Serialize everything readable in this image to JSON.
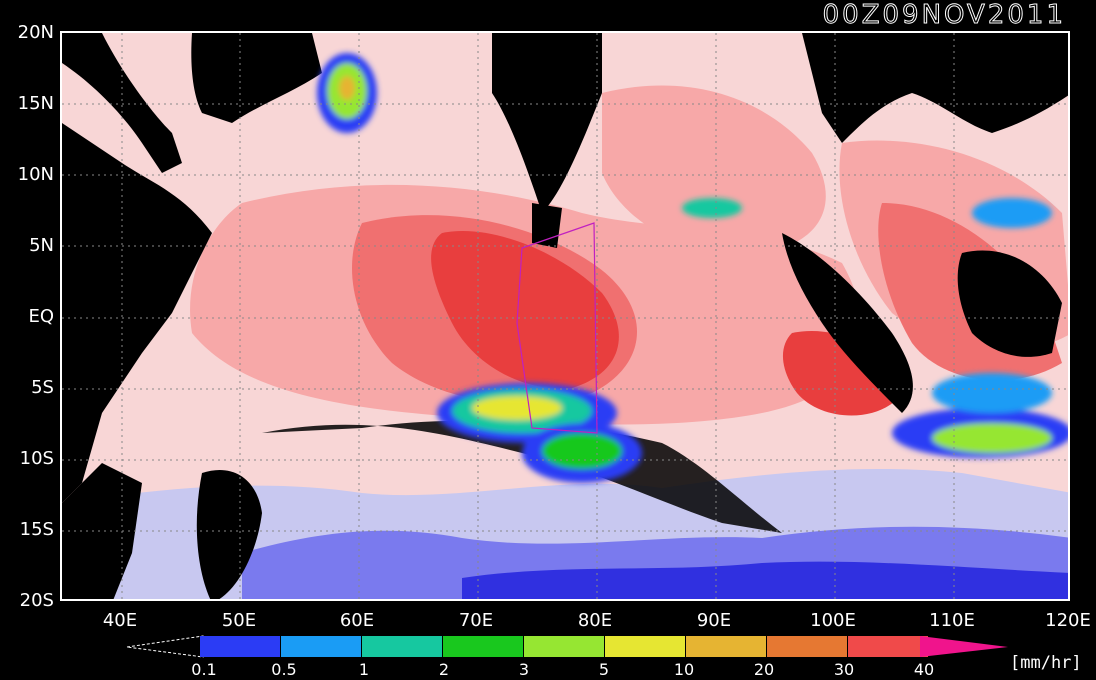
{
  "title": "00Z09NOV2011",
  "lat_labels": [
    "20N",
    "15N",
    "10N",
    "5N",
    "EQ",
    "5S",
    "10S",
    "15S",
    "20S"
  ],
  "lon_labels": [
    "40E",
    "50E",
    "60E",
    "70E",
    "80E",
    "90E",
    "100E",
    "110E",
    "120E"
  ],
  "colorbar": {
    "unit": "[mm/hr]",
    "labels": [
      "0.1",
      "0.5",
      "1",
      "2",
      "3",
      "5",
      "10",
      "20",
      "30",
      "40"
    ],
    "colors": [
      "#2b3cf5",
      "#1a9cf5",
      "#16c8a0",
      "#19c81e",
      "#96e632",
      "#e6e632",
      "#e6b432",
      "#e67832",
      "#f04a4a",
      "#f0148c"
    ]
  },
  "legend_colors": {
    "very_light": "#f8d6d6",
    "light": "#f7a8a8",
    "medium": "#f07070",
    "strong": "#e83e3e",
    "low_lightblue": "#c8c8f0",
    "low_blue": "#5a5ae6",
    "land": "#000000"
  }
}
